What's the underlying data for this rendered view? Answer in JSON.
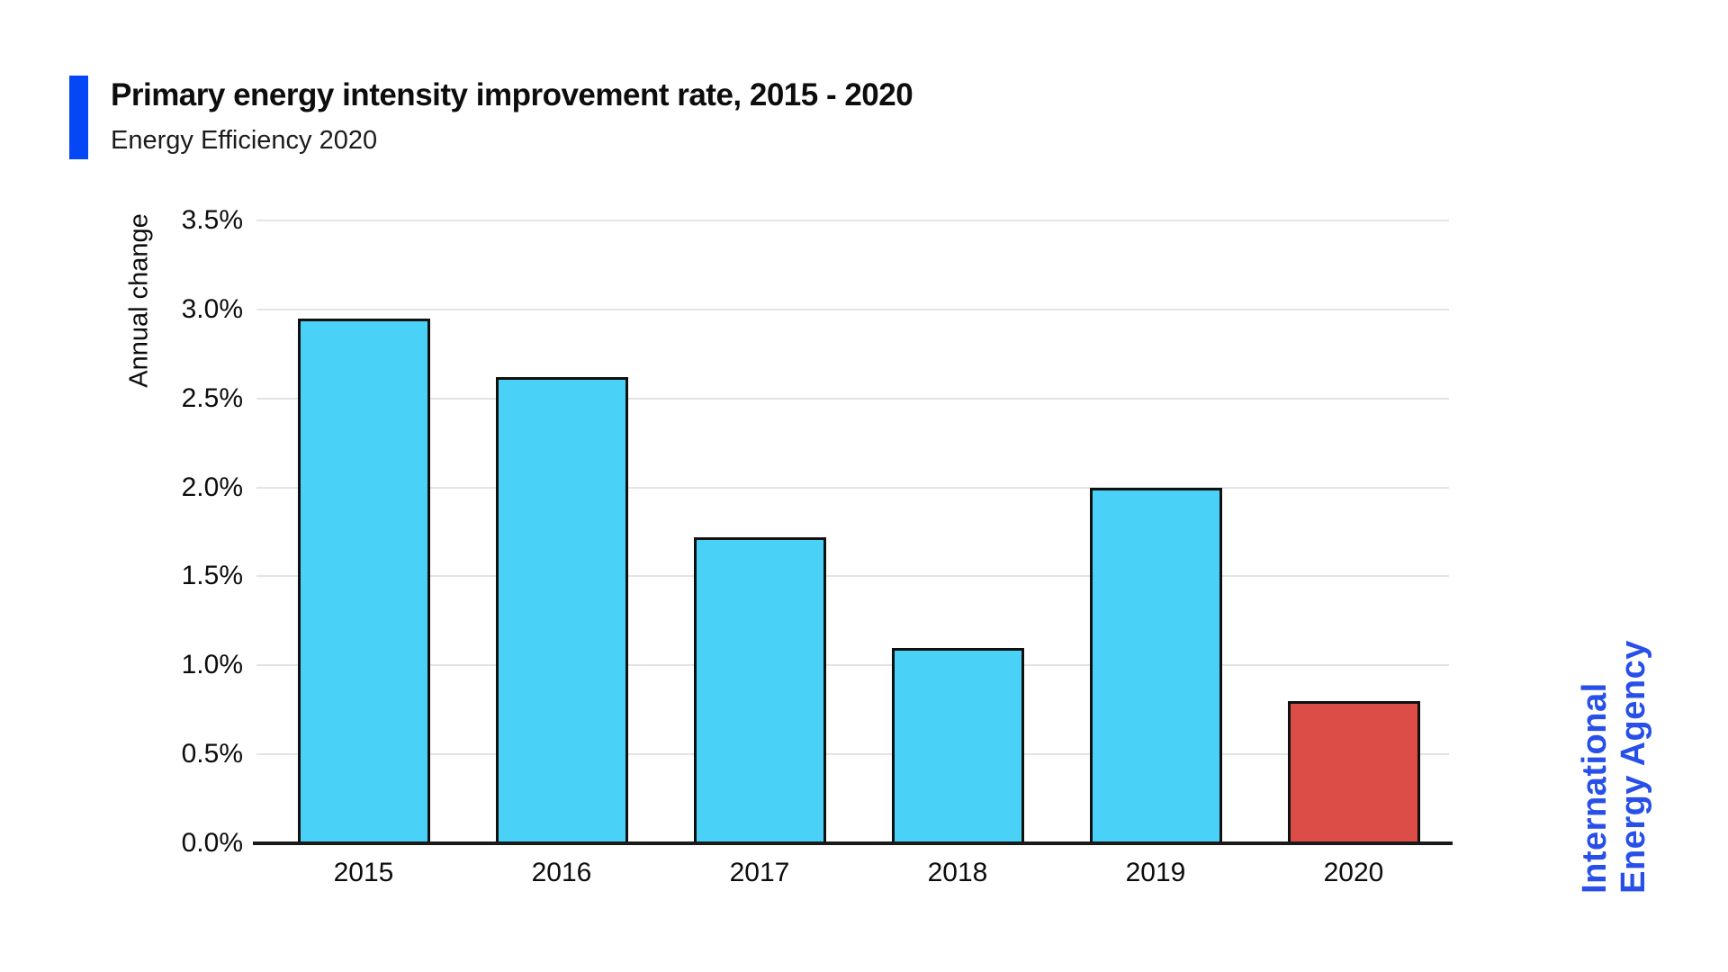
{
  "header": {
    "title": "Primary energy intensity improvement rate, 2015 - 2020",
    "subtitle": "Energy Efficiency 2020",
    "accent_color": "#0546f5"
  },
  "chart_data": {
    "type": "bar",
    "title": "Primary energy intensity improvement rate, 2015 - 2020",
    "subtitle": "Energy Efficiency 2020",
    "xlabel": "",
    "ylabel": "Annual change",
    "categories": [
      "2015",
      "2016",
      "2017",
      "2018",
      "2019",
      "2020"
    ],
    "values": [
      2.95,
      2.62,
      1.72,
      1.1,
      2.0,
      0.8
    ],
    "unit": "%",
    "ylim": [
      0,
      3.5
    ],
    "ytick_step": 0.5,
    "ytick_labels": [
      "0.0%",
      "0.5%",
      "1.0%",
      "1.5%",
      "2.0%",
      "2.5%",
      "3.0%",
      "3.5%"
    ],
    "grid": true,
    "legend": false,
    "bar_colors": [
      "#4ad1f7",
      "#4ad1f7",
      "#4ad1f7",
      "#4ad1f7",
      "#4ad1f7",
      "#dd4d47"
    ],
    "bar_border_color": "#101010",
    "grid_color": "#e4e4e4",
    "axis_color": "#1a1a1a"
  },
  "branding": {
    "line1": "International",
    "line2": "Energy Agency",
    "color": "#2850e8"
  }
}
